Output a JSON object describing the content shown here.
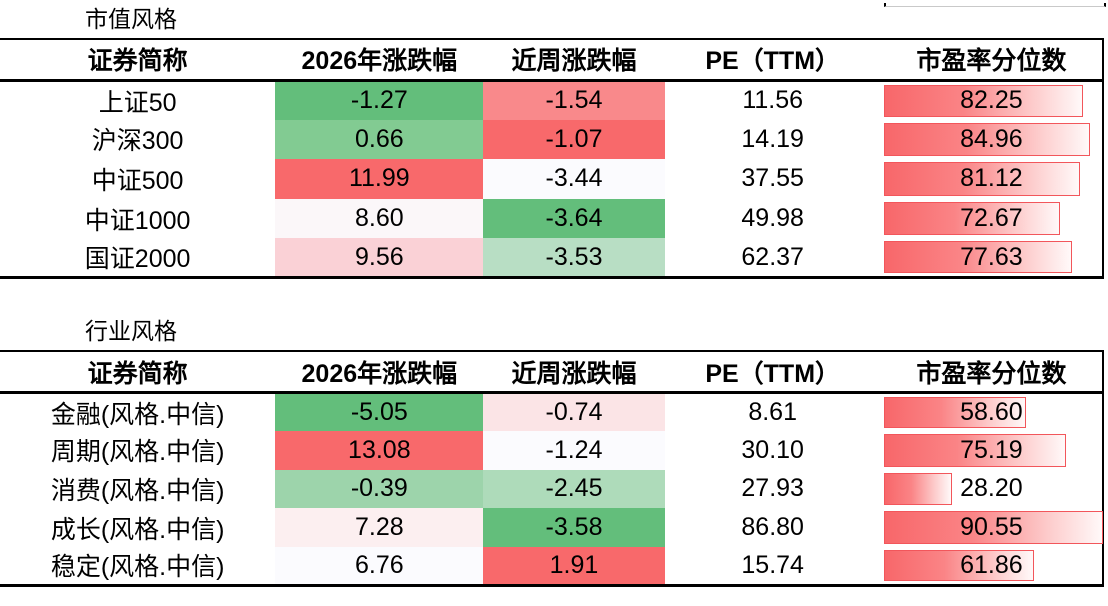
{
  "page": {
    "background": "#FFFFFF"
  },
  "colors": {
    "rule": "#000000",
    "bar_border": "#F2565B",
    "bar_gradient_start": "#F8676A",
    "bar_gradient_end": "#FFF9F9",
    "scale_green": "#63BE7B",
    "scale_white": "#FBFBFE",
    "scale_red": "#F8696B"
  },
  "bar_scale_max": 91.3,
  "tables": [
    {
      "title": "市值风格",
      "headers": [
        "证券简称",
        "2026年涨跌幅",
        "近周涨跌幅",
        "PE（TTM）",
        "市盈率分位数"
      ],
      "rows": [
        {
          "name": "上证50",
          "chg_year": "-1.27",
          "chg_year_bg": "#63BE7B",
          "chg_week": "-1.54",
          "chg_week_bg": "#F9898B",
          "pe": "11.56",
          "pe_pct": "82.25",
          "pe_pct_value": 82.25
        },
        {
          "name": "沪深300",
          "chg_year": "0.66",
          "chg_year_bg": "#82CB92",
          "chg_week": "-1.07",
          "chg_week_bg": "#F8696B",
          "pe": "14.19",
          "pe_pct": "84.96",
          "pe_pct_value": 84.96
        },
        {
          "name": "中证500",
          "chg_year": "11.99",
          "chg_year_bg": "#F8696B",
          "chg_week": "-3.44",
          "chg_week_bg": "#FBFBFE",
          "pe": "37.55",
          "pe_pct": "81.12",
          "pe_pct_value": 81.12
        },
        {
          "name": "中证1000",
          "chg_year": "8.60",
          "chg_year_bg": "#FBF7F9",
          "chg_week": "-3.64",
          "chg_week_bg": "#63BE7B",
          "pe": "49.98",
          "pe_pct": "72.67",
          "pe_pct_value": 72.67
        },
        {
          "name": "国证2000",
          "chg_year": "9.56",
          "chg_year_bg": "#FAD1D6",
          "chg_week": "-3.53",
          "chg_week_bg": "#B8DEC4",
          "pe": "62.37",
          "pe_pct": "77.63",
          "pe_pct_value": 77.63
        }
      ]
    },
    {
      "title": "行业风格",
      "headers": [
        "证券简称",
        "2026年涨跌幅",
        "近周涨跌幅",
        "PE（TTM）",
        "市盈率分位数"
      ],
      "rows": [
        {
          "name": "金融(风格.中信)",
          "chg_year": "-5.05",
          "chg_year_bg": "#63BE7B",
          "chg_week": "-0.74",
          "chg_week_bg": "#FBE4E6",
          "pe": "8.61",
          "pe_pct": "58.60",
          "pe_pct_value": 58.6
        },
        {
          "name": "周期(风格.中信)",
          "chg_year": "13.08",
          "chg_year_bg": "#F8696B",
          "chg_week": "-1.24",
          "chg_week_bg": "#FBFBFE",
          "pe": "30.10",
          "pe_pct": "75.19",
          "pe_pct_value": 75.19
        },
        {
          "name": "消费(风格.中信)",
          "chg_year": "-0.39",
          "chg_year_bg": "#9DD4AB",
          "chg_week": "-2.45",
          "chg_week_bg": "#AEDBBA",
          "pe": "27.93",
          "pe_pct": "28.20",
          "pe_pct_value": 28.2
        },
        {
          "name": "成长(风格.中信)",
          "chg_year": "7.28",
          "chg_year_bg": "#FCEFF0",
          "chg_week": "-3.58",
          "chg_week_bg": "#63BE7B",
          "pe": "86.80",
          "pe_pct": "90.55",
          "pe_pct_value": 90.55
        },
        {
          "name": "稳定(风格.中信)",
          "chg_year": "6.76",
          "chg_year_bg": "#FBFBFE",
          "chg_week": "1.91",
          "chg_week_bg": "#F8696B",
          "pe": "15.74",
          "pe_pct": "61.86",
          "pe_pct_value": 61.86
        }
      ]
    }
  ]
}
